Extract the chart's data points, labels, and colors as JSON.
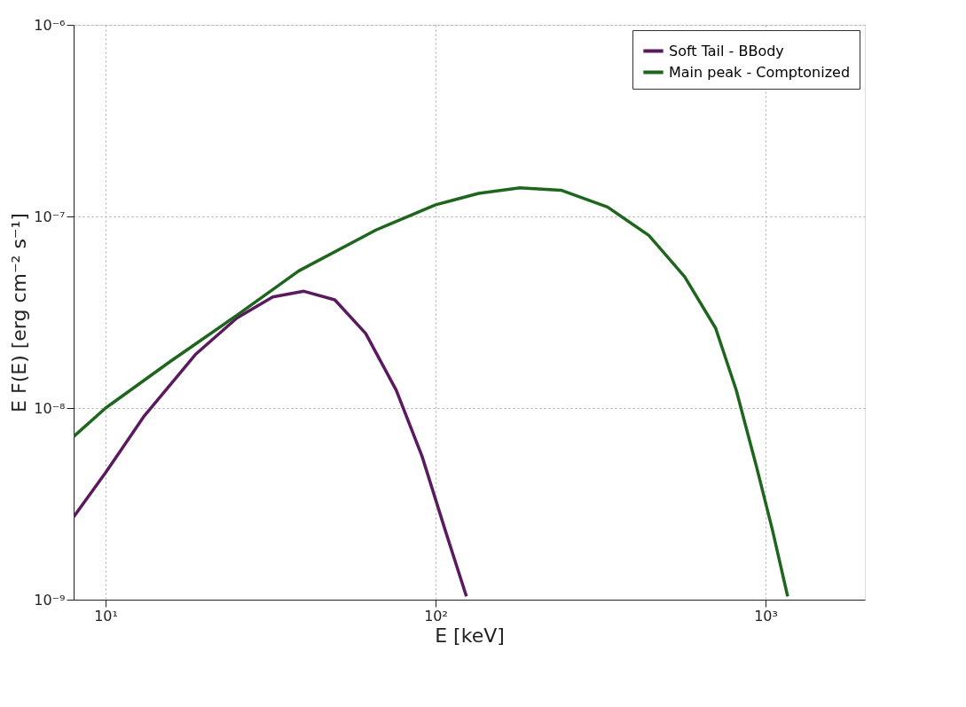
{
  "chart_data": {
    "type": "line",
    "xlabel": "E [keV]",
    "ylabel": "E F(E) [erg cm⁻² s⁻¹]",
    "log": "xy",
    "grid": true,
    "legend": "top right",
    "line_style": "solid",
    "marker": "none",
    "xlim": [
      8,
      2000
    ],
    "ylim": [
      1e-09,
      1e-06
    ],
    "xticks": [
      {
        "value": 10,
        "label": "10¹"
      },
      {
        "value": 100,
        "label": "10²"
      },
      {
        "value": 1000,
        "label": "10³"
      }
    ],
    "yticks": [
      {
        "value": 1e-09,
        "label": "10⁻⁹"
      },
      {
        "value": 1e-08,
        "label": "10⁻⁸"
      },
      {
        "value": 1e-07,
        "label": "10⁻⁷"
      },
      {
        "value": 1e-06,
        "label": "10⁻⁶"
      }
    ],
    "series": [
      {
        "name": "Soft Tail - BBody",
        "color": "#5b1a5f",
        "x": [
          8,
          10,
          13.1,
          18.7,
          25,
          32.1,
          39.9,
          49.5,
          61.4,
          76,
          91,
          107,
          124
        ],
        "values": [
          2.7e-09,
          4.6e-09,
          9.1e-09,
          1.9e-08,
          2.95e-08,
          3.8e-08,
          4.07e-08,
          3.67e-08,
          2.45e-08,
          1.24e-08,
          5.6e-09,
          2.3e-09,
          1.04e-09
        ]
      },
      {
        "name": "Main peak - Comptonized",
        "color": "#1e661e",
        "x": [
          8,
          10,
          15.7,
          25,
          38.5,
          66,
          100,
          135,
          180,
          240,
          332,
          443,
          569,
          706,
          815,
          940,
          1048,
          1167
        ],
        "values": [
          7.1e-09,
          1e-08,
          1.75e-08,
          3.05e-08,
          5.2e-08,
          8.5e-08,
          1.15e-07,
          1.32e-07,
          1.41e-07,
          1.37e-07,
          1.12e-07,
          7.96e-08,
          4.84e-08,
          2.61e-08,
          1.24e-08,
          4.9e-09,
          2.33e-09,
          1.04e-09
        ]
      }
    ]
  }
}
